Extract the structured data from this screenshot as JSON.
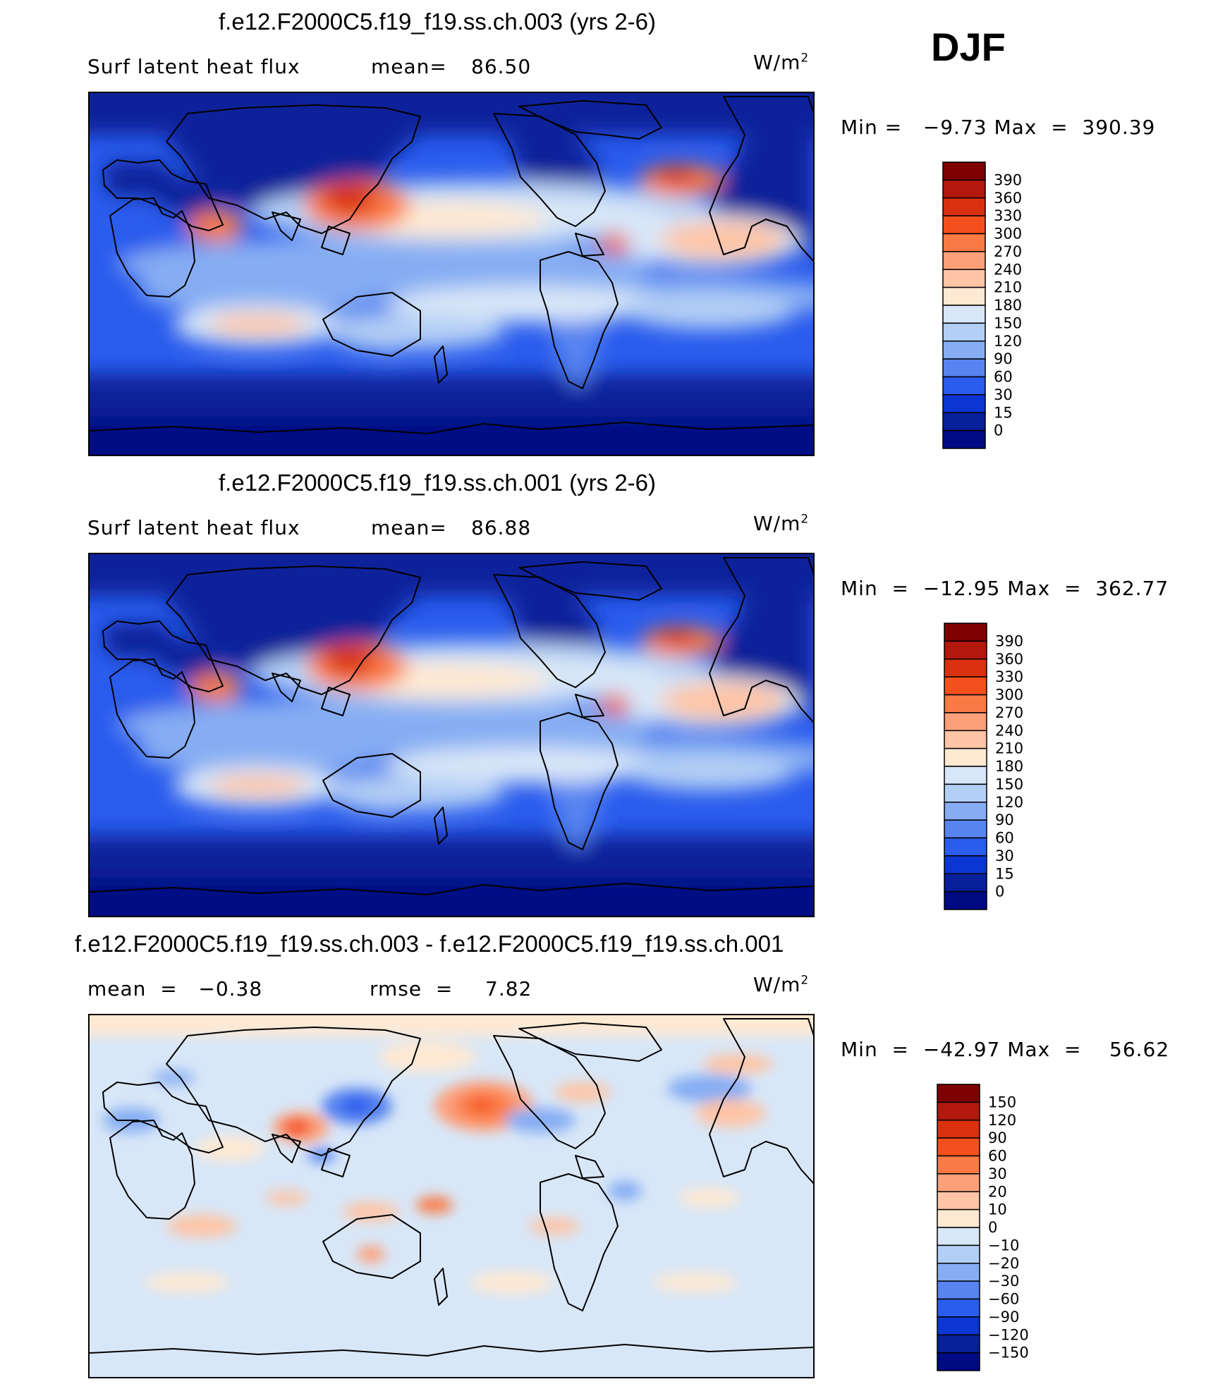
{
  "season": "DJF",
  "units": "W/m",
  "units_sup": "2",
  "panels": [
    {
      "title": "f.e12.F2000C5.f19_f19.ss.ch.003 (yrs 2-6)",
      "left_label": "Surf latent heat flux",
      "stat_label": "mean=",
      "stat_value": "86.50",
      "minmax": "Min =   −9.73 Max  =  390.39",
      "colorbar_levels": [
        "390",
        "360",
        "330",
        "300",
        "270",
        "240",
        "210",
        "180",
        "150",
        "120",
        "90",
        "60",
        "30",
        "15",
        "0"
      ],
      "field": "absolute"
    },
    {
      "title": "f.e12.F2000C5.f19_f19.ss.ch.001 (yrs 2-6)",
      "left_label": "Surf latent heat flux",
      "stat_label": "mean=",
      "stat_value": "86.88",
      "minmax": "Min  =  −12.95 Max  =  362.77",
      "colorbar_levels": [
        "390",
        "360",
        "330",
        "300",
        "270",
        "240",
        "210",
        "180",
        "150",
        "120",
        "90",
        "60",
        "30",
        "15",
        "0"
      ],
      "field": "absolute"
    },
    {
      "title": "f.e12.F2000C5.f19_f19.ss.ch.003 - f.e12.F2000C5.f19_f19.ss.ch.001",
      "left_label": "mean  =   −0.38",
      "stat_label": "rmse  =",
      "stat_value": "7.82",
      "minmax": "Min  =  −42.97 Max  =    56.62",
      "colorbar_levels": [
        "150",
        "120",
        "90",
        "60",
        "30",
        "20",
        "10",
        "0",
        "−10",
        "−20",
        "−30",
        "−60",
        "−90",
        "−120",
        "−150"
      ],
      "field": "difference"
    }
  ],
  "colors": {
    "absolute": [
      "#7f0000",
      "#b2180c",
      "#d9300f",
      "#f4501d",
      "#fa7a45",
      "#fca07a",
      "#fec5a6",
      "#fee9d3",
      "#d8e7f8",
      "#b3cff5",
      "#86adf3",
      "#5684f0",
      "#2a5ced",
      "#0b36d3",
      "#08209a",
      "#000a83"
    ],
    "difference": [
      "#7f0000",
      "#b2180c",
      "#d9300f",
      "#f4501d",
      "#fa7a45",
      "#fca07a",
      "#fec5a6",
      "#fee9d3",
      "#d8e7f8",
      "#b3cff5",
      "#86adf3",
      "#5684f0",
      "#2a5ced",
      "#0b36d3",
      "#08209a",
      "#000a83"
    ]
  },
  "chart_data": [
    {
      "type": "heatmap",
      "title": "f.e12.F2000C5.f19_f19.ss.ch.003 (yrs 2-6)",
      "variable": "Surf latent heat flux",
      "units": "W/m^2",
      "mean": 86.5,
      "min": -9.73,
      "max": 390.39,
      "contour_levels": [
        0,
        15,
        30,
        60,
        90,
        120,
        150,
        180,
        210,
        240,
        270,
        300,
        330,
        360,
        390
      ]
    },
    {
      "type": "heatmap",
      "title": "f.e12.F2000C5.f19_f19.ss.ch.001 (yrs 2-6)",
      "variable": "Surf latent heat flux",
      "units": "W/m^2",
      "mean": 86.88,
      "min": -12.95,
      "max": 362.77,
      "contour_levels": [
        0,
        15,
        30,
        60,
        90,
        120,
        150,
        180,
        210,
        240,
        270,
        300,
        330,
        360,
        390
      ]
    },
    {
      "type": "heatmap",
      "title": "f.e12.F2000C5.f19_f19.ss.ch.003 - f.e12.F2000C5.f19_f19.ss.ch.001",
      "units": "W/m^2",
      "mean": -0.38,
      "rmse": 7.82,
      "min": -42.97,
      "max": 56.62,
      "contour_levels": [
        -150,
        -120,
        -90,
        -60,
        -30,
        -20,
        -10,
        0,
        10,
        20,
        30,
        60,
        90,
        120,
        150
      ]
    }
  ]
}
